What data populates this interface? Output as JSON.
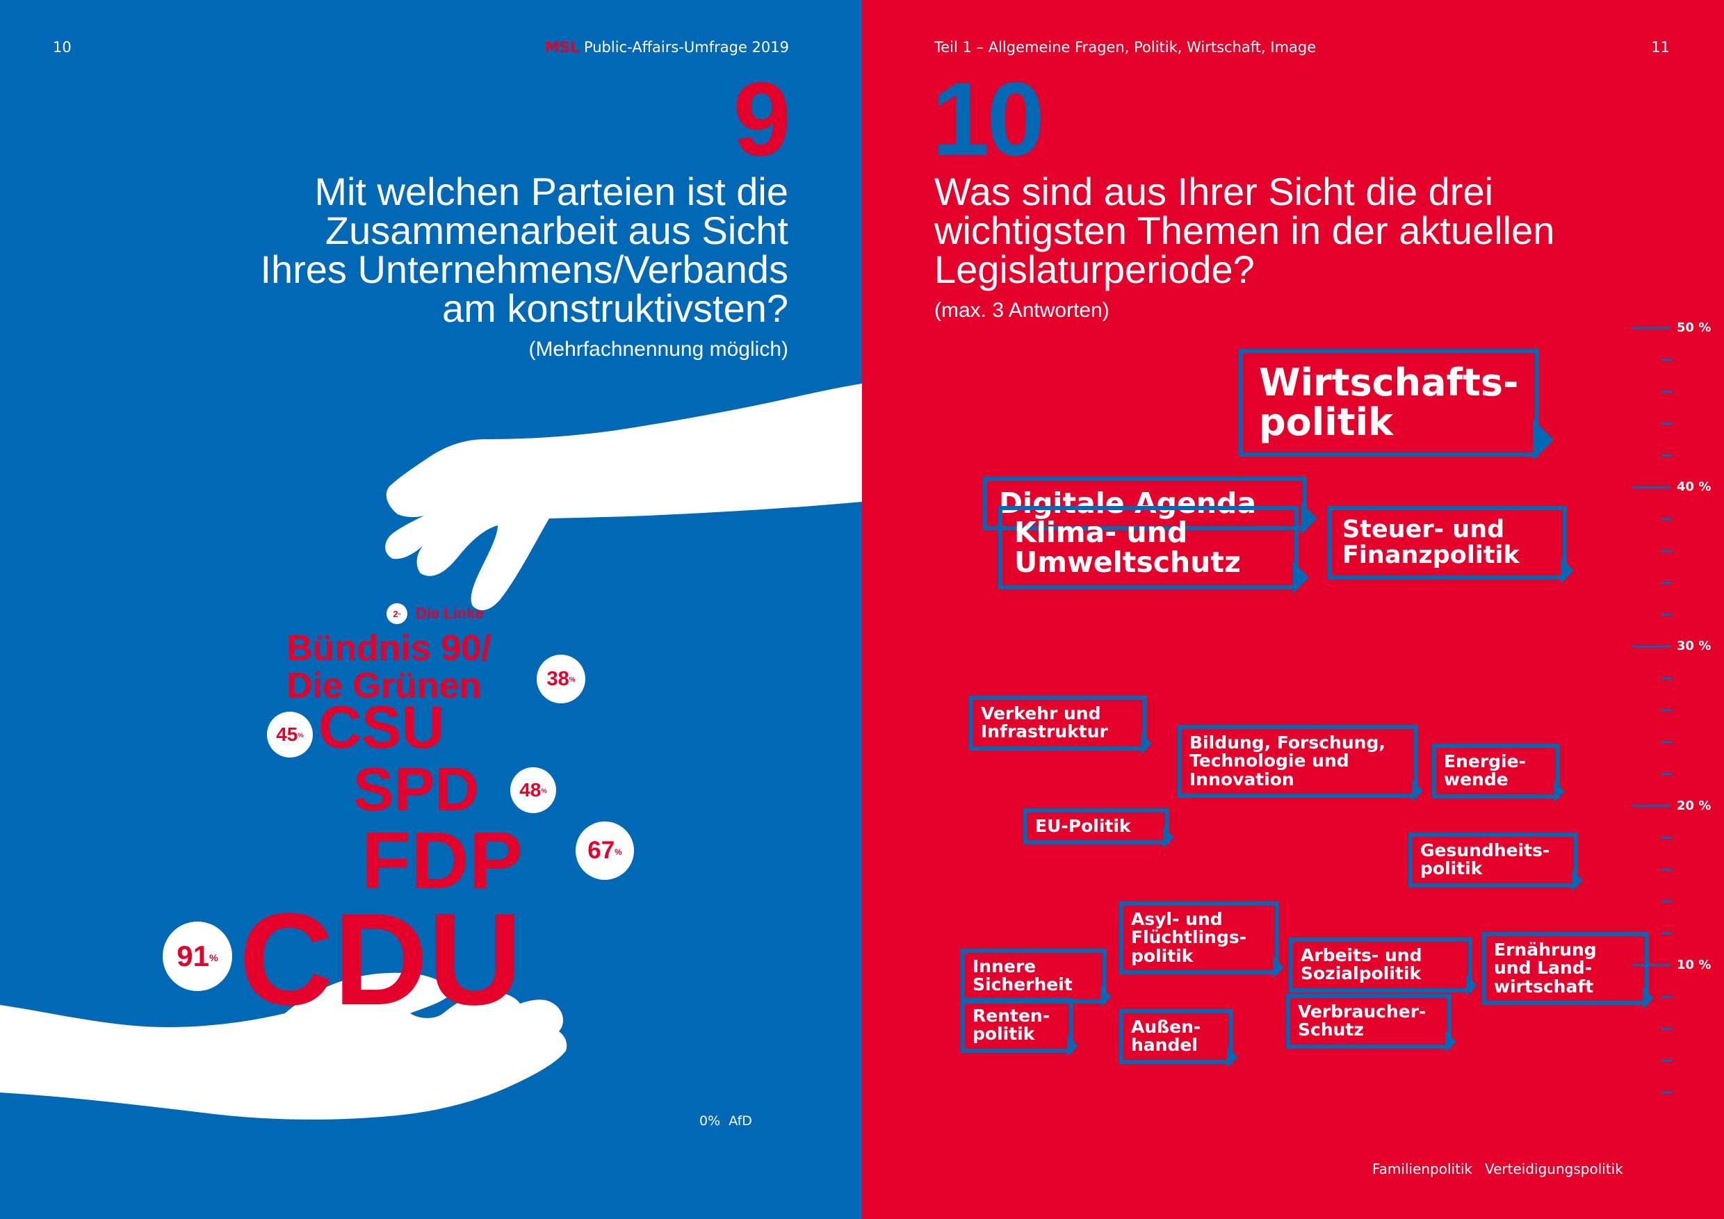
{
  "left_page": {
    "page_number": "10",
    "brand": "MSL",
    "header_title": "Public-Affairs-Umfrage 2019",
    "question_number": "9",
    "question_lines": [
      "Mit welchen Parteien ist die",
      "Zusammenarbeit aus Sicht",
      "Ihres Unternehmens/Verbands",
      "am konstruktivsten?"
    ],
    "note": "(Mehrfachnennung möglich)",
    "percent_sign": "%"
  },
  "right_page": {
    "page_number": "11",
    "header_section": "Teil 1 – Allgemeine Fragen, Politik, Wirtschaft, Image",
    "question_number": "10",
    "question_lines": [
      "Was sind aus Ihrer Sicht die drei",
      "wichtigsten Themen in der aktuellen",
      "Legislaturperiode?"
    ],
    "note": "(max. 3 Antworten)"
  },
  "chart_data": [
    {
      "type": "bar",
      "categories": [
        "CDU",
        "FDP",
        "SPD",
        "CSU",
        "Bündnis 90/Die Grünen",
        "Die Linke",
        "AfD"
      ],
      "display_labels": [
        "CDU",
        "FDP",
        "SPD",
        "CSU",
        "Bündnis 90/\nDie Grünen",
        "Die Linke",
        "AfD"
      ],
      "values": [
        91,
        67,
        48,
        45,
        38,
        2,
        0
      ],
      "value_labels": [
        "91",
        "67",
        "48",
        "45",
        "38",
        "2",
        "0"
      ],
      "unit": "%"
    },
    {
      "type": "scatter",
      "y_axis": {
        "ylim": [
          0,
          50
        ],
        "unit": "%",
        "tick_labels": [
          "10 %",
          "20 %",
          "30 %",
          "40 %",
          "50 %"
        ],
        "tick_values": [
          10,
          20,
          30,
          40,
          50
        ],
        "minor_step": 2
      },
      "topics": [
        {
          "label": "Wirtschafts-\npolitik",
          "value": 45.3
        },
        {
          "label": "Digitale Agenda",
          "value": 39.0
        },
        {
          "label": "Klima- und\nUmweltschutz",
          "value": 36.2
        },
        {
          "label": "Steuer- und\nFinanzpolitik",
          "value": 36.5
        },
        {
          "label": "Verkehr und\nInfrastruktur",
          "value": 25.2
        },
        {
          "label": "Bildung, Forschung,\nTechnologie und\nInnovation",
          "value": 22.8
        },
        {
          "label": "Energie-\nwende",
          "value": 22.2
        },
        {
          "label": "EU-Politik",
          "value": 18.7
        },
        {
          "label": "Gesundheits-\npolitik",
          "value": 16.6
        },
        {
          "label": "Asyl- und\nFlüchtlings-\npolitik",
          "value": 11.7
        },
        {
          "label": "Innere\nSicherheit",
          "value": 9.3
        },
        {
          "label": "Arbeits- und\nSozialpolitik",
          "value": 10.0
        },
        {
          "label": "Ernährung\nund Land-\nwirtschaft",
          "value": 9.8
        },
        {
          "label": "Renten-\npolitik",
          "value": 6.2
        },
        {
          "label": "Verbraucher-\nSchutz",
          "value": 6.5
        },
        {
          "label": "Außen-\nhandel",
          "value": 5.5
        }
      ],
      "zero_items": [
        "Familienpolitik",
        "Verteidigungspolitik"
      ]
    }
  ],
  "colors": {
    "blue": "#0068b4",
    "red": "#e4002b",
    "white": "#ffffff"
  }
}
